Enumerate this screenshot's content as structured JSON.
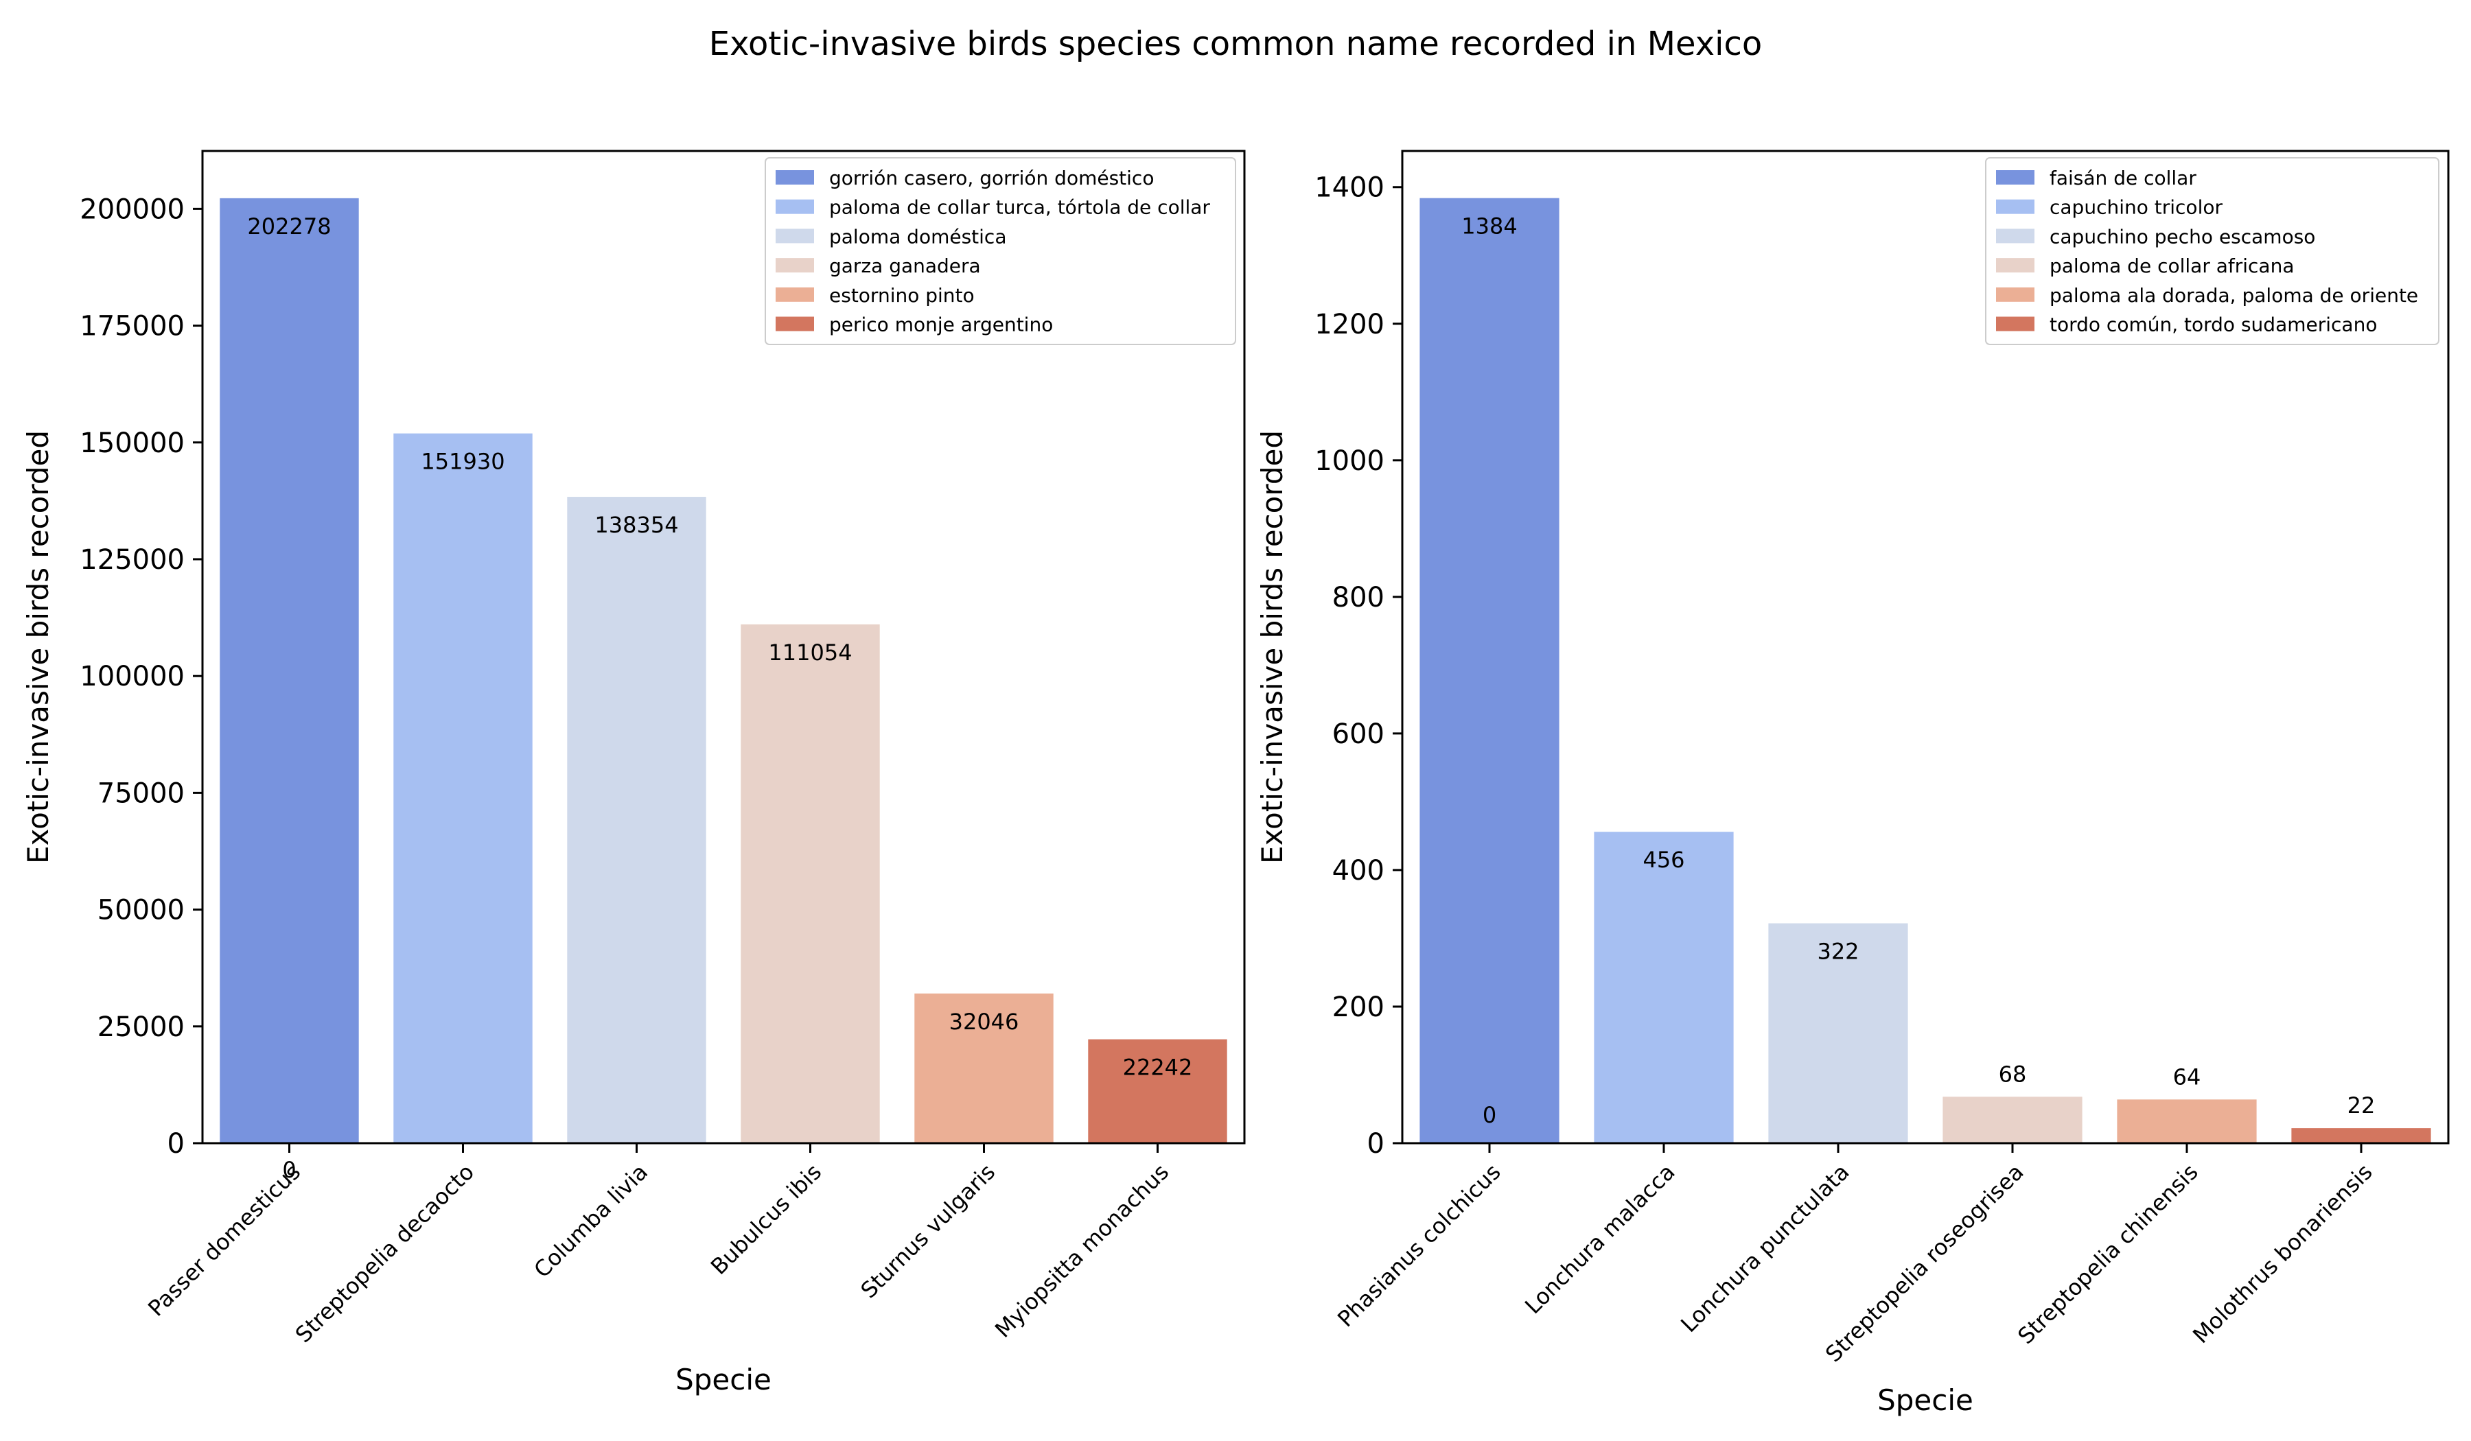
{
  "figure": {
    "title": "Exotic-invasive birds species common name recorded in Mexico"
  },
  "colors": [
    "#7893de",
    "#a6bff2",
    "#cfd9eb",
    "#e8d2c9",
    "#ebaf95",
    "#d3765f"
  ],
  "chart_data": [
    {
      "type": "bar",
      "title": "",
      "xlabel": "Specie",
      "ylabel": "Exotic-invasive birds recorded",
      "ylim": [
        0,
        212392
      ],
      "yticks": [
        0,
        25000,
        50000,
        75000,
        100000,
        125000,
        150000,
        175000,
        200000
      ],
      "categories": [
        "Passer domesticus",
        "Streptopelia decaocto",
        "Columba livia",
        "Bubulcus ibis",
        "Sturnus vulgaris",
        "Myiopsitta monachus"
      ],
      "values": [
        202278,
        151930,
        138354,
        111054,
        32046,
        22242
      ],
      "extra_labels": [
        {
          "category_index": 0,
          "text": "0"
        }
      ],
      "legend": {
        "location": "upper right",
        "entries": [
          "gorrión casero, gorrión doméstico",
          "paloma de collar turca, tórtola de collar",
          "paloma doméstica",
          "garza ganadera",
          "estornino pinto",
          "perico monje argentino"
        ]
      }
    },
    {
      "type": "bar",
      "title": "",
      "xlabel": "Specie",
      "ylabel": "Exotic-invasive birds recorded",
      "ylim": [
        0,
        1453
      ],
      "yticks": [
        0,
        200,
        400,
        600,
        800,
        1000,
        1200,
        1400
      ],
      "categories": [
        "Phasianus colchicus",
        "Lonchura malacca",
        "Lonchura punctulata",
        "Streptopelia roseogrisea",
        "Streptopelia chinensis",
        "Molothrus bonariensis"
      ],
      "values": [
        1384,
        456,
        322,
        68,
        64,
        22
      ],
      "extra_labels": [
        {
          "category_index": 0,
          "text": "0"
        }
      ],
      "legend": {
        "location": "upper right",
        "entries": [
          "faisán de collar",
          "capuchino tricolor",
          "capuchino pecho escamoso",
          "paloma de collar africana",
          "paloma ala dorada, paloma de oriente",
          "tordo común, tordo sudamericano"
        ]
      }
    }
  ]
}
